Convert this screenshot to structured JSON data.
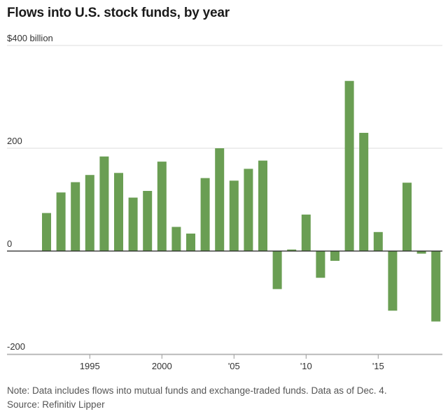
{
  "chart_data": {
    "type": "bar",
    "title": "Flows into U.S. stock funds, by year",
    "y_unit_label": "$400 billion",
    "ylim": [
      -200,
      400
    ],
    "y_ticks": [
      {
        "value": 400,
        "label": "$400 billion"
      },
      {
        "value": 200,
        "label": "200"
      },
      {
        "value": 0,
        "label": "0"
      },
      {
        "value": -200,
        "label": "-200"
      }
    ],
    "x_ticks": [
      {
        "value": 1995,
        "label": "1995"
      },
      {
        "value": 2000,
        "label": "2000"
      },
      {
        "value": 2005,
        "label": "'05"
      },
      {
        "value": 2010,
        "label": "'10"
      },
      {
        "value": 2015,
        "label": "'15"
      }
    ],
    "grid": "horizontal",
    "bar_color": "#6a9e53",
    "categories": [
      1992,
      1993,
      1994,
      1995,
      1996,
      1997,
      1998,
      1999,
      2000,
      2001,
      2002,
      2003,
      2004,
      2005,
      2006,
      2007,
      2008,
      2009,
      2010,
      2011,
      2012,
      2013,
      2014,
      2015,
      2016,
      2017,
      2018,
      2019
    ],
    "values": [
      74,
      114,
      134,
      148,
      184,
      152,
      104,
      117,
      174,
      47,
      34,
      142,
      200,
      137,
      160,
      176,
      -74,
      3,
      71,
      -52,
      -19,
      331,
      230,
      37,
      -116,
      133,
      -5,
      -137
    ]
  },
  "footer": {
    "note": "Note: Data includes flows into mutual funds and exchange-traded funds. Data as of Dec. 4.",
    "source": "Source: Refinitiv Lipper"
  }
}
